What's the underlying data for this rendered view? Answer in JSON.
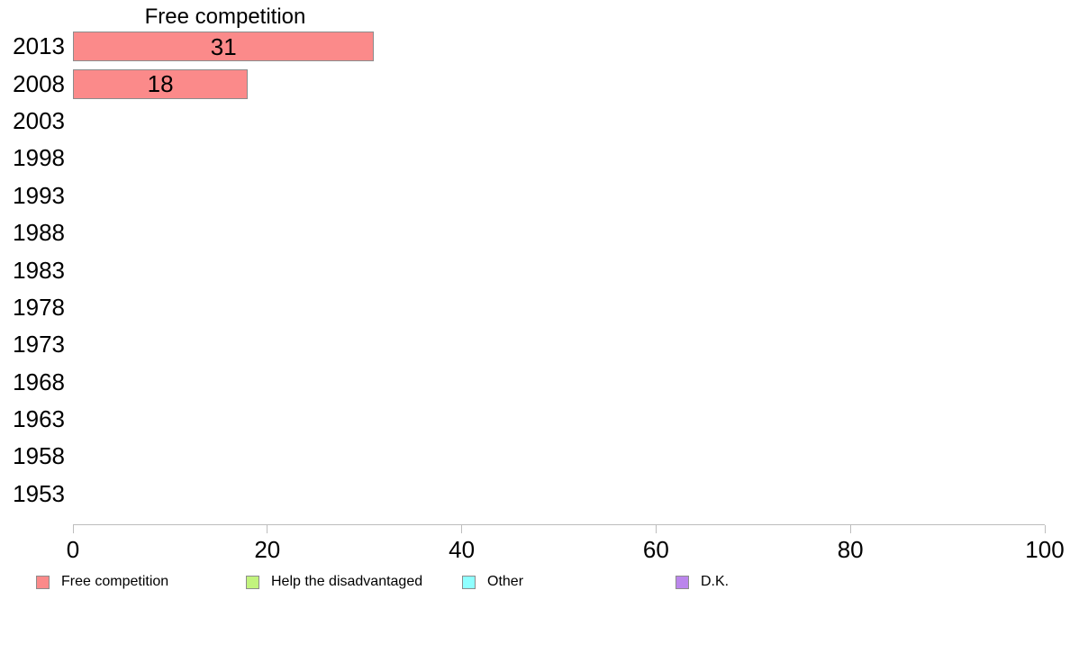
{
  "chart_data": {
    "type": "bar",
    "orientation": "horizontal",
    "title": "Free competition",
    "categories": [
      "2013",
      "2008",
      "2003",
      "1998",
      "1993",
      "1988",
      "1983",
      "1978",
      "1973",
      "1968",
      "1963",
      "1958",
      "1953"
    ],
    "values": [
      31,
      18,
      null,
      null,
      null,
      null,
      null,
      null,
      null,
      null,
      null,
      null,
      null
    ],
    "xlabel": "",
    "ylabel": "",
    "xlim": [
      0,
      100
    ],
    "xticks": [
      0,
      20,
      40,
      60,
      80,
      100
    ],
    "grid": false,
    "bar_color": "#fb8a8a",
    "bar_border_color": "#8c8c8c",
    "axis_color": "#bdbdbd",
    "legend_position": "bottom",
    "legend": [
      {
        "label": "Free competition",
        "color": "#fb8a8a"
      },
      {
        "label": "Help the disadvantaged",
        "color": "#c2f37e"
      },
      {
        "label": "Other",
        "color": "#8fffff"
      },
      {
        "label": "D.K.",
        "color": "#bb86ec"
      }
    ]
  }
}
